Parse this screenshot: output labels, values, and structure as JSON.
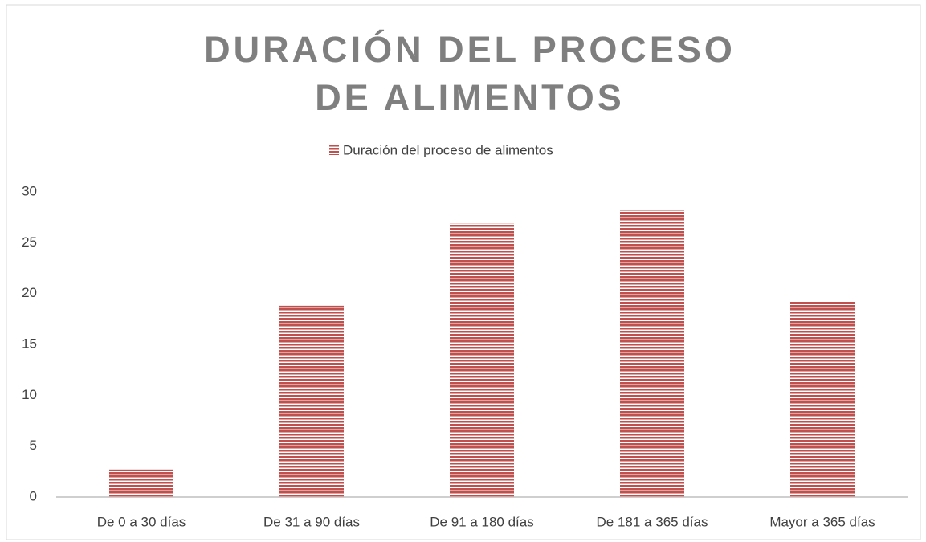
{
  "chart_data": {
    "type": "bar",
    "title": "DURACIÓN DEL PROCESO DE ALIMENTOS",
    "categories": [
      "De 0 a 30 días",
      "De 31 a 90 días",
      "De 91 a 180 días",
      "De 181 a 365 días",
      "Mayor a 365 días"
    ],
    "series": [
      {
        "name": "Duración del proceso de alimentos",
        "color": "#c0504d",
        "values": [
          2.7,
          18.8,
          26.9,
          28.2,
          19.3
        ]
      }
    ],
    "ylim": [
      0,
      30
    ],
    "yticks": [
      0,
      5,
      10,
      15,
      20,
      25,
      30
    ],
    "grid": false,
    "legend": "top"
  }
}
